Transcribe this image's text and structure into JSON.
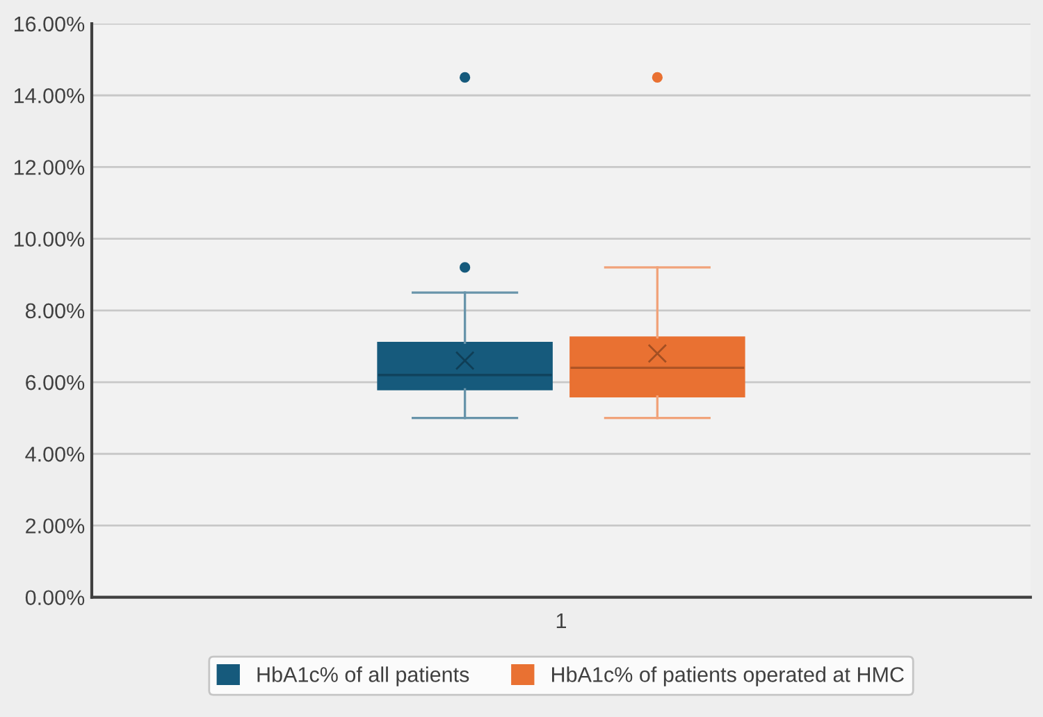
{
  "chart_data": {
    "type": "box",
    "categories": [
      "1"
    ],
    "series": [
      {
        "name": "HbA1c% of all patients",
        "color": "#165a7c",
        "boxes": [
          {
            "low": 5.0,
            "q1": 5.8,
            "median": 6.2,
            "q3": 7.1,
            "high": 8.5,
            "mean": 6.6,
            "outliers": [
              9.2,
              14.5
            ]
          }
        ]
      },
      {
        "name": "HbA1c% of patients operated at HMC",
        "color": "#e97132",
        "boxes": [
          {
            "low": 5.0,
            "q1": 5.6,
            "median": 6.4,
            "q3": 7.25,
            "high": 9.2,
            "mean": 6.8,
            "outliers": [
              14.5
            ]
          }
        ]
      }
    ],
    "ylim": [
      0,
      16
    ],
    "yticks": [
      {
        "value": 0,
        "label": "0.00%"
      },
      {
        "value": 2,
        "label": "2.00%"
      },
      {
        "value": 4,
        "label": "4.00%"
      },
      {
        "value": 6,
        "label": "6.00%"
      },
      {
        "value": 8,
        "label": "8.00%"
      },
      {
        "value": 10,
        "label": "10.00%"
      },
      {
        "value": 12,
        "label": "12.00%"
      },
      {
        "value": 14,
        "label": "14.00%"
      },
      {
        "value": 16,
        "label": "16.00%"
      }
    ],
    "grid": "y",
    "legend": "bottom"
  }
}
